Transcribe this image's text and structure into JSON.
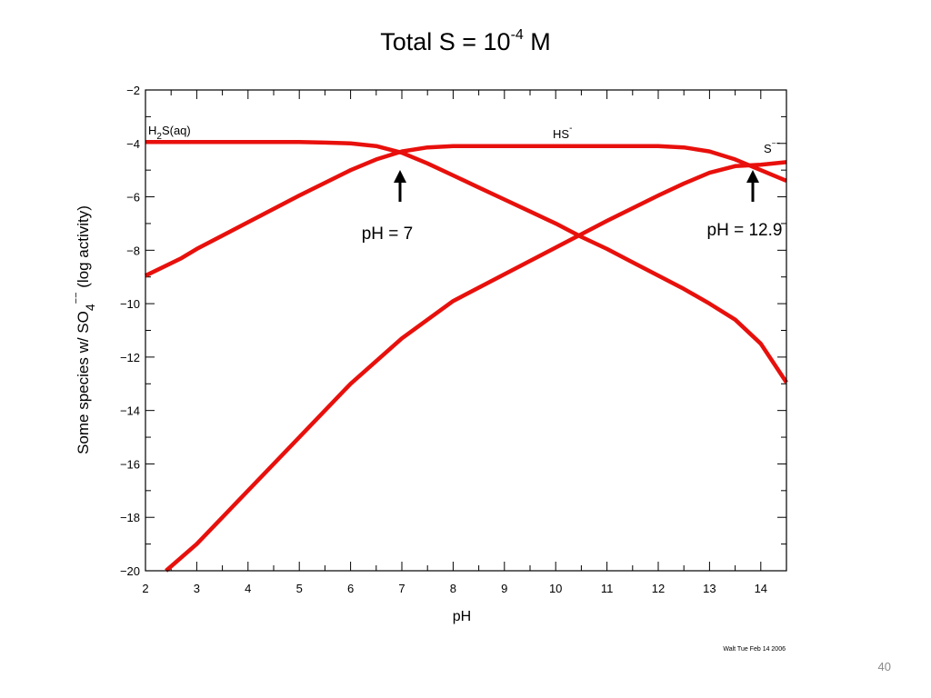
{
  "slide": {
    "title_main": "Total S = 10",
    "title_exp": "-4",
    "title_unit": " M",
    "page_number": "40"
  },
  "chart_data": {
    "type": "line",
    "xlabel": "pH",
    "ylabel_parts": [
      "Some species w/ SO",
      "4",
      "−−",
      " (log activity)"
    ],
    "xlim": [
      2,
      14.5
    ],
    "ylim": [
      -20,
      -2
    ],
    "xticks": [
      2,
      3,
      4,
      5,
      6,
      7,
      8,
      9,
      10,
      11,
      12,
      13,
      14
    ],
    "yticks": [
      -20,
      -18,
      -16,
      -14,
      -12,
      -10,
      -8,
      -6,
      -4,
      -2
    ],
    "ytick_labels": [
      "−20",
      "−18",
      "−16",
      "−14",
      "−12",
      "−10",
      "−8",
      "−6",
      "−4",
      "−2"
    ],
    "line_color": "#e8100c",
    "series": [
      {
        "label_parts": [
          "H",
          "2",
          "S(aq)"
        ],
        "x": [
          2,
          3,
          4,
          5,
          5.5,
          6,
          6.5,
          7,
          7.5,
          8,
          8.5,
          9,
          9.5,
          10,
          10.5,
          11,
          11.5,
          12,
          12.5,
          13,
          13.5,
          14,
          14.5
        ],
        "y": [
          -3.95,
          -3.95,
          -3.95,
          -3.95,
          -3.97,
          -4.0,
          -4.1,
          -4.35,
          -4.75,
          -5.2,
          -5.65,
          -6.1,
          -6.55,
          -7.0,
          -7.5,
          -7.95,
          -8.45,
          -8.95,
          -9.45,
          -10.0,
          -10.6,
          -11.5,
          -12.95
        ]
      },
      {
        "label_parts": [
          "HS",
          "-"
        ],
        "x": [
          2,
          2.7,
          3,
          4,
          5,
          6,
          6.5,
          7,
          7.5,
          8,
          9,
          10,
          11,
          12,
          12.5,
          13,
          13.5,
          14,
          14.5
        ],
        "y": [
          -8.95,
          -8.3,
          -7.95,
          -6.95,
          -5.95,
          -5.0,
          -4.6,
          -4.3,
          -4.15,
          -4.1,
          -4.1,
          -4.1,
          -4.1,
          -4.1,
          -4.15,
          -4.3,
          -4.6,
          -5.0,
          -5.4
        ]
      },
      {
        "label_parts": [
          "S",
          "−−"
        ],
        "x": [
          2.4,
          3,
          4,
          5,
          6,
          7,
          8,
          9,
          10,
          11,
          12,
          12.5,
          13,
          13.5,
          14,
          14.5
        ],
        "y": [
          -20.0,
          -19.0,
          -17.0,
          -15.0,
          -13.0,
          -11.3,
          -9.9,
          -8.9,
          -7.9,
          -6.9,
          -5.95,
          -5.5,
          -5.1,
          -4.85,
          -4.8,
          -4.7
        ]
      }
    ],
    "annotations": [
      {
        "text": "pH = 7",
        "x": 7,
        "y": -6.2
      },
      {
        "text": "pH = 12.9",
        "x": 13.9,
        "y": -6.2
      }
    ],
    "footer_note": "Walt Tue Feb 14 2006"
  }
}
